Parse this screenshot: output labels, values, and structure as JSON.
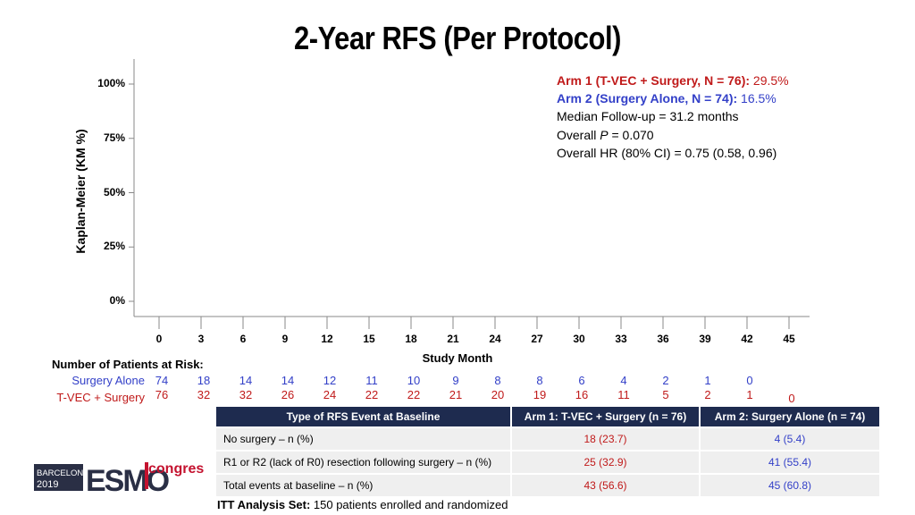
{
  "chart_data": {
    "type": "line",
    "title": "2-Year RFS (Per Protocol)",
    "ylabel": "Kaplan-Meier (KM %)",
    "xlabel": "Study Month",
    "ylim": [
      0,
      100
    ],
    "xlim": [
      0,
      45
    ],
    "yticks": [
      0,
      25,
      50,
      75,
      100
    ],
    "ytick_labels": [
      "0%",
      "25%",
      "50%",
      "75%",
      "100%"
    ],
    "xticks": [
      0,
      3,
      6,
      9,
      12,
      15,
      18,
      21,
      24,
      27,
      30,
      33,
      36,
      39,
      42,
      45
    ],
    "xtick_labels": [
      "0",
      "3",
      "6",
      "9",
      "12",
      "15",
      "18",
      "21",
      "24",
      "27",
      "30",
      "33",
      "36",
      "39",
      "42",
      "45"
    ],
    "series": [
      {
        "name": "Arm 1 (T-VEC + Surgery, N = 76):",
        "value_label": "29.5%",
        "color": "#c01a1a"
      },
      {
        "name": "Arm 2 (Surgery Alone, N = 74):",
        "value_label": "16.5%",
        "color": "#3340c8"
      }
    ],
    "annotations": {
      "followup": "Median Follow-up = 31.2 months",
      "p_prefix": "Overall ",
      "p_letter": "P",
      "p_suffix": " = 0.070",
      "hr": "Overall HR (80% CI) = 0.75 (0.58, 0.96)"
    },
    "risk_table": {
      "title": "Number of Patients at Risk:",
      "rows": [
        {
          "name": "Surgery Alone",
          "color": "#3340c8",
          "values": [
            "74",
            "18",
            "14",
            "14",
            "12",
            "11",
            "10",
            "9",
            "8",
            "8",
            "6",
            "4",
            "2",
            "1",
            "0"
          ]
        },
        {
          "name": "T-VEC + Surgery",
          "color": "#c01a1a",
          "values": [
            "76",
            "32",
            "32",
            "26",
            "24",
            "22",
            "22",
            "21",
            "20",
            "19",
            "16",
            "11",
            "5",
            "2",
            "1",
            "0"
          ]
        }
      ]
    }
  },
  "table": {
    "headers": [
      "Type of RFS Event at Baseline",
      "Arm 1: T-VEC + Surgery (n = 76)",
      "Arm 2: Surgery Alone (n = 74)"
    ],
    "rows": [
      [
        "No surgery – n (%)",
        "18 (23.7)",
        "4 (5.4)"
      ],
      [
        "R1 or R2 (lack of R0) resection following surgery – n (%)",
        "25 (32.9)",
        "41 (55.4)"
      ],
      [
        "Total events at baseline – n (%)",
        "43 (56.6)",
        "45 (60.8)"
      ]
    ],
    "arm1_color": "#c01a1a",
    "arm2_color": "#3340c8"
  },
  "footnote": {
    "label": "ITT Analysis Set:",
    "text": " 150 patients enrolled and randomized"
  },
  "logo": {
    "city": "BARCELONA",
    "year": "2019",
    "brand": "ESMO",
    "suffix": "congress",
    "brand_color": "#2a2f45",
    "accent_color": "#c4122f"
  }
}
